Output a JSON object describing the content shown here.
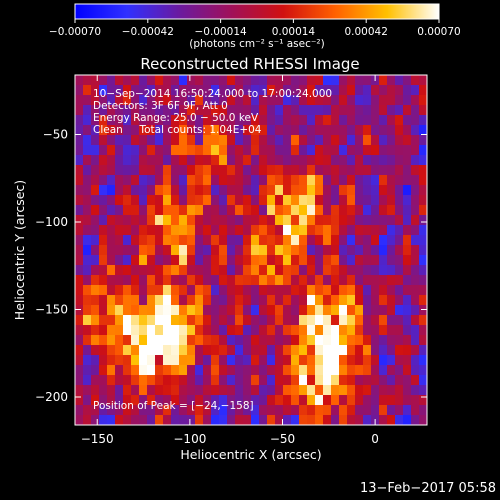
{
  "chart_data": {
    "type": "heatmap",
    "title": "Reconstructed RHESSI Image",
    "xlabel": "Heliocentric X (arcsec)",
    "ylabel": "Heliocentric Y (arcsec)",
    "xlim": [
      -162,
      28
    ],
    "ylim": [
      -216,
      -16
    ],
    "xticks": [
      -150,
      -100,
      -50,
      0
    ],
    "yticks": [
      -200,
      -150,
      -100,
      -50
    ],
    "xtick_labels": [
      "−150",
      "−100",
      "−50",
      "0"
    ],
    "ytick_labels": [
      "−200",
      "−150",
      "−100",
      "−50"
    ],
    "colorbar": {
      "range": [
        -0.0007,
        0.0007
      ],
      "ticks": [
        -0.0007,
        -0.00042,
        -0.00014,
        0.00014,
        0.00042,
        0.0007
      ],
      "tick_labels": [
        "−0.00070",
        "−0.00042",
        "−0.00014",
        "0.00014",
        "0.00042",
        "0.00070"
      ],
      "unit_label": "(photons cm⁻² s⁻¹ asec⁻²)",
      "colormap_stops": [
        "#0000ff",
        "#3030ff",
        "#6a1aa0",
        "#a0105a",
        "#d01010",
        "#ff6000",
        "#ffc000",
        "#ffffff"
      ]
    },
    "annotations": [
      "10−Sep−2014 16:50:24.000 to 17:00:24.000",
      "Detectors: 3F 6F 9F, Att 0",
      "Energy Range: 25.0 − 50.0 keV",
      "Clean     Total counts: 1.04E+04"
    ],
    "peak_label": "Position of Peak = [−24,−158]",
    "peak_position": [
      -24,
      -158
    ],
    "approx_bright_regions": [
      {
        "x": -110,
        "y": -160,
        "level": 0.95
      },
      {
        "x": -110,
        "y": -105,
        "level": 0.7
      },
      {
        "x": -125,
        "y": -175,
        "level": 0.75
      },
      {
        "x": -24,
        "y": -158,
        "level": 1.0
      },
      {
        "x": -30,
        "y": -190,
        "level": 0.85
      },
      {
        "x": -40,
        "y": -90,
        "level": 0.7
      },
      {
        "x": -55,
        "y": -120,
        "level": 0.6
      },
      {
        "x": -145,
        "y": -150,
        "level": 0.55
      },
      {
        "x": -90,
        "y": -60,
        "level": 0.5
      }
    ]
  },
  "footer": {
    "date_stamp": "13−Feb−2017 05:58"
  }
}
